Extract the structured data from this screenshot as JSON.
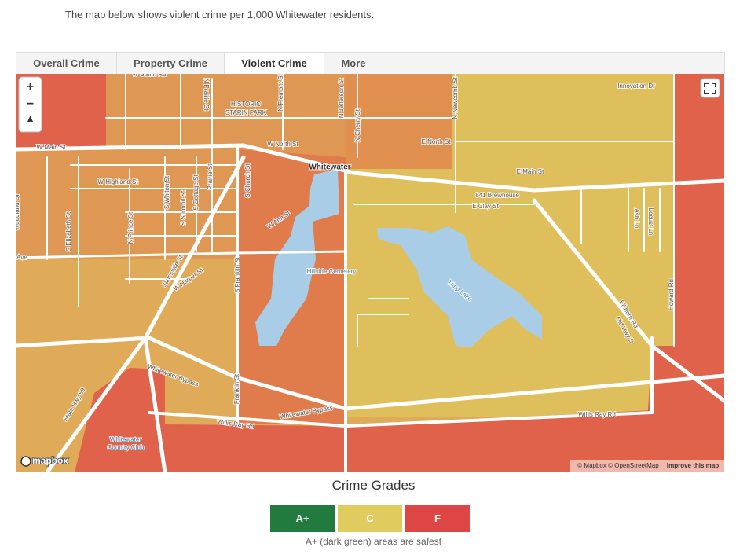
{
  "intro": "The map below shows violent crime per 1,000 Whitewater residents.",
  "tabs": [
    "Overall Crime",
    "Property Crime",
    "Violent Crime",
    "More"
  ],
  "map": {
    "controls": [
      "+",
      "−"
    ],
    "labels": [
      "W Starin Rd",
      "N Prairie St",
      "HISTORIC",
      "STARIN PARK",
      "N Fremont St",
      "N Jefferson St",
      "N Cherry St",
      "N Newcomb St",
      "Innovation Dr",
      "W Main St",
      "W North St",
      "E North St",
      "Whitewater",
      "E Main St",
      "W Highland St",
      "841 Brewhouse",
      "E Clay St",
      "S Whiton St",
      "S Summit St",
      "S Cottage St",
      "Prairie St",
      "S Church St",
      "W Ann St",
      "Woodland Dr",
      "S Elizabeth St",
      "N Prince St",
      "Ave",
      "Janesville St",
      "W Harper St",
      "S Franklin St",
      "Hillside Cemetery",
      "Tripp Lake",
      "Elkhorn Rd",
      "Old Hwy D",
      "Howard Rd",
      "Ash Ln",
      "Locust Ln",
      "Whitewater Bypass",
      "Franklin St",
      "State Hwy 59",
      "Whitewater Bypass",
      "Willis Ray Rd",
      "Willis Ray Rd",
      "Whitewater",
      "Country Club"
    ],
    "logo": "mapbox",
    "attribution": "© Mapbox © OpenStreetMap",
    "improve": "Improve this map"
  },
  "legend": {
    "title": "Crime Grades",
    "grades": [
      "A+",
      "C",
      "F"
    ],
    "caption": "A+ (dark green) areas are safest"
  }
}
